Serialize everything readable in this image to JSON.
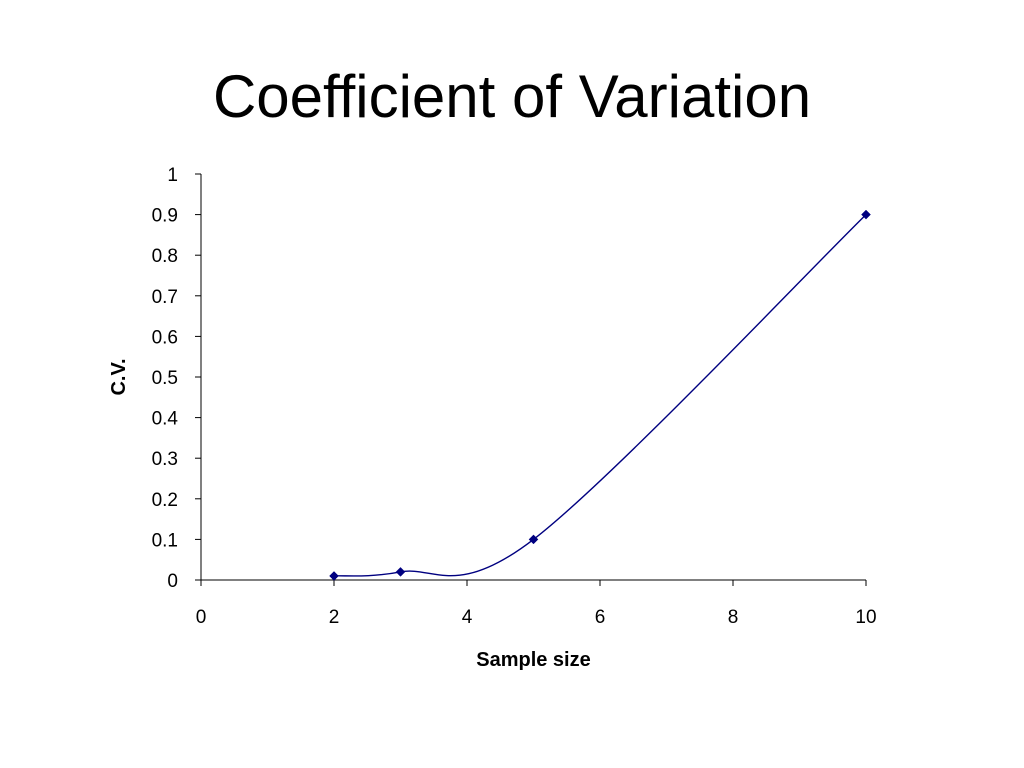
{
  "slide": {
    "title": "Coefficient of Variation"
  },
  "colors": {
    "series": "#000080",
    "axis": "#000000",
    "background": "#ffffff"
  },
  "chart_data": {
    "type": "scatter",
    "title": "Coefficient of Variation",
    "xlabel": "Sample size",
    "ylabel": "C.V.",
    "xlim": [
      0,
      10
    ],
    "ylim": [
      0,
      1
    ],
    "x_ticks": [
      "0",
      "2",
      "4",
      "6",
      "8",
      "10"
    ],
    "y_ticks": [
      "0",
      "0.1",
      "0.2",
      "0.3",
      "0.4",
      "0.5",
      "0.6",
      "0.7",
      "0.8",
      "0.9",
      "1"
    ],
    "grid": false,
    "legend": "none",
    "line_style": "smoothed",
    "marker": "diamond",
    "series": [
      {
        "x": [
          2,
          3,
          5,
          10
        ],
        "y": [
          0.01,
          0.02,
          0.1,
          0.9
        ]
      }
    ]
  }
}
